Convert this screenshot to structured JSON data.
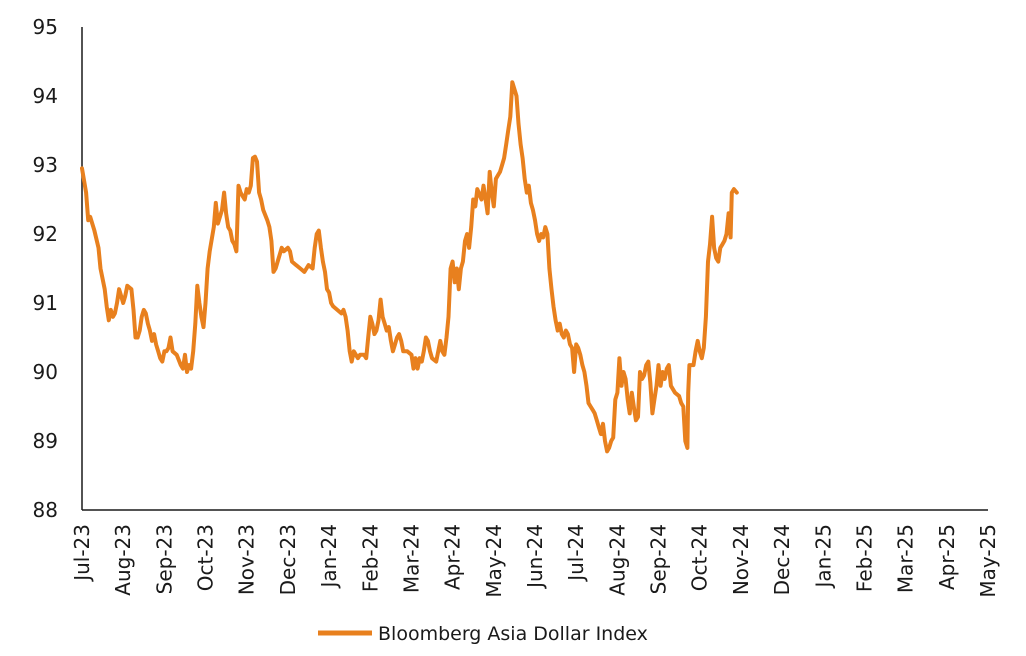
{
  "chart_data": {
    "type": "line",
    "title": "",
    "xlabel": "",
    "ylabel": "",
    "ylim": [
      88,
      95
    ],
    "yticks": [
      88,
      89,
      90,
      91,
      92,
      93,
      94,
      95
    ],
    "x_tick_labels": [
      "Jul-23",
      "Aug-23",
      "Sep-23",
      "Oct-23",
      "Nov-23",
      "Dec-23",
      "Jan-24",
      "Feb-24",
      "Mar-24",
      "Apr-24",
      "May-24",
      "Jun-24",
      "Jul-24",
      "Aug-24",
      "Sep-24",
      "Oct-24",
      "Nov-24",
      "Dec-24",
      "Jan-25",
      "Feb-25",
      "Mar-25",
      "Apr-25",
      "May-25"
    ],
    "grid": false,
    "legend": "bottom-center",
    "colors": {
      "series": "#E8801E",
      "axis": "#1a1a1a"
    },
    "series": [
      {
        "name": "Bloomberg Asia Dollar Index",
        "points": [
          [
            0.0,
            92.95
          ],
          [
            0.1,
            92.6
          ],
          [
            0.15,
            92.2
          ],
          [
            0.2,
            92.25
          ],
          [
            0.3,
            92.05
          ],
          [
            0.4,
            91.8
          ],
          [
            0.45,
            91.5
          ],
          [
            0.55,
            91.2
          ],
          [
            0.6,
            90.95
          ],
          [
            0.65,
            90.75
          ],
          [
            0.7,
            90.9
          ],
          [
            0.75,
            90.8
          ],
          [
            0.8,
            90.85
          ],
          [
            0.85,
            91.0
          ],
          [
            0.9,
            91.2
          ],
          [
            1.0,
            91.0
          ],
          [
            1.05,
            91.1
          ],
          [
            1.1,
            91.25
          ],
          [
            1.2,
            91.2
          ],
          [
            1.25,
            90.9
          ],
          [
            1.3,
            90.5
          ],
          [
            1.35,
            90.5
          ],
          [
            1.4,
            90.6
          ],
          [
            1.45,
            90.8
          ],
          [
            1.5,
            90.9
          ],
          [
            1.55,
            90.85
          ],
          [
            1.6,
            90.7
          ],
          [
            1.65,
            90.6
          ],
          [
            1.7,
            90.45
          ],
          [
            1.75,
            90.55
          ],
          [
            1.8,
            90.4
          ],
          [
            1.85,
            90.3
          ],
          [
            1.9,
            90.2
          ],
          [
            1.95,
            90.15
          ],
          [
            2.0,
            90.3
          ],
          [
            2.05,
            90.3
          ],
          [
            2.1,
            90.35
          ],
          [
            2.15,
            90.5
          ],
          [
            2.2,
            90.3
          ],
          [
            2.3,
            90.25
          ],
          [
            2.4,
            90.1
          ],
          [
            2.45,
            90.05
          ],
          [
            2.5,
            90.25
          ],
          [
            2.55,
            90.0
          ],
          [
            2.6,
            90.1
          ],
          [
            2.65,
            90.05
          ],
          [
            2.7,
            90.3
          ],
          [
            2.75,
            90.7
          ],
          [
            2.8,
            91.25
          ],
          [
            2.85,
            91.0
          ],
          [
            2.9,
            90.8
          ],
          [
            2.95,
            90.65
          ],
          [
            3.0,
            91.0
          ],
          [
            3.05,
            91.5
          ],
          [
            3.1,
            91.75
          ],
          [
            3.2,
            92.1
          ],
          [
            3.25,
            92.45
          ],
          [
            3.3,
            92.15
          ],
          [
            3.4,
            92.35
          ],
          [
            3.45,
            92.6
          ],
          [
            3.5,
            92.3
          ],
          [
            3.55,
            92.1
          ],
          [
            3.6,
            92.05
          ],
          [
            3.65,
            91.9
          ],
          [
            3.7,
            91.85
          ],
          [
            3.75,
            91.75
          ],
          [
            3.8,
            92.7
          ],
          [
            3.85,
            92.6
          ],
          [
            3.9,
            92.55
          ],
          [
            3.95,
            92.5
          ],
          [
            4.0,
            92.65
          ],
          [
            4.05,
            92.6
          ],
          [
            4.1,
            92.7
          ],
          [
            4.15,
            93.1
          ],
          [
            4.2,
            93.12
          ],
          [
            4.25,
            93.05
          ],
          [
            4.3,
            92.6
          ],
          [
            4.35,
            92.5
          ],
          [
            4.4,
            92.35
          ],
          [
            4.5,
            92.2
          ],
          [
            4.55,
            92.1
          ],
          [
            4.6,
            91.9
          ],
          [
            4.65,
            91.45
          ],
          [
            4.7,
            91.5
          ],
          [
            4.8,
            91.7
          ],
          [
            4.85,
            91.8
          ],
          [
            4.9,
            91.75
          ],
          [
            5.0,
            91.8
          ],
          [
            5.05,
            91.75
          ],
          [
            5.1,
            91.6
          ],
          [
            5.2,
            91.55
          ],
          [
            5.3,
            91.5
          ],
          [
            5.4,
            91.45
          ],
          [
            5.5,
            91.55
          ],
          [
            5.6,
            91.5
          ],
          [
            5.65,
            91.8
          ],
          [
            5.7,
            92.0
          ],
          [
            5.75,
            92.05
          ],
          [
            5.8,
            91.8
          ],
          [
            5.85,
            91.6
          ],
          [
            5.9,
            91.45
          ],
          [
            5.95,
            91.2
          ],
          [
            6.0,
            91.15
          ],
          [
            6.05,
            91.0
          ],
          [
            6.1,
            90.95
          ],
          [
            6.2,
            90.9
          ],
          [
            6.3,
            90.85
          ],
          [
            6.35,
            90.9
          ],
          [
            6.4,
            90.8
          ],
          [
            6.45,
            90.6
          ],
          [
            6.5,
            90.3
          ],
          [
            6.55,
            90.15
          ],
          [
            6.6,
            90.3
          ],
          [
            6.7,
            90.2
          ],
          [
            6.75,
            90.25
          ],
          [
            6.85,
            90.25
          ],
          [
            6.9,
            90.2
          ],
          [
            6.95,
            90.5
          ],
          [
            7.0,
            90.8
          ],
          [
            7.05,
            90.7
          ],
          [
            7.1,
            90.55
          ],
          [
            7.15,
            90.6
          ],
          [
            7.2,
            90.75
          ],
          [
            7.25,
            91.05
          ],
          [
            7.3,
            90.8
          ],
          [
            7.35,
            90.7
          ],
          [
            7.4,
            90.6
          ],
          [
            7.45,
            90.65
          ],
          [
            7.5,
            90.45
          ],
          [
            7.55,
            90.3
          ],
          [
            7.6,
            90.4
          ],
          [
            7.65,
            90.5
          ],
          [
            7.7,
            90.55
          ],
          [
            7.75,
            90.45
          ],
          [
            7.8,
            90.3
          ],
          [
            7.9,
            90.3
          ],
          [
            8.0,
            90.25
          ],
          [
            8.05,
            90.05
          ],
          [
            8.1,
            90.2
          ],
          [
            8.15,
            90.05
          ],
          [
            8.2,
            90.2
          ],
          [
            8.25,
            90.15
          ],
          [
            8.3,
            90.3
          ],
          [
            8.35,
            90.5
          ],
          [
            8.4,
            90.45
          ],
          [
            8.45,
            90.3
          ],
          [
            8.5,
            90.2
          ],
          [
            8.6,
            90.15
          ],
          [
            8.7,
            90.45
          ],
          [
            8.75,
            90.3
          ],
          [
            8.8,
            90.25
          ],
          [
            8.85,
            90.5
          ],
          [
            8.9,
            90.8
          ],
          [
            8.95,
            91.5
          ],
          [
            9.0,
            91.6
          ],
          [
            9.05,
            91.3
          ],
          [
            9.1,
            91.5
          ],
          [
            9.15,
            91.2
          ],
          [
            9.2,
            91.5
          ],
          [
            9.25,
            91.6
          ],
          [
            9.3,
            91.9
          ],
          [
            9.35,
            92.0
          ],
          [
            9.4,
            91.8
          ],
          [
            9.45,
            92.1
          ],
          [
            9.5,
            92.5
          ],
          [
            9.55,
            92.4
          ],
          [
            9.6,
            92.65
          ],
          [
            9.7,
            92.5
          ],
          [
            9.75,
            92.7
          ],
          [
            9.8,
            92.5
          ],
          [
            9.85,
            92.3
          ],
          [
            9.9,
            92.9
          ],
          [
            9.95,
            92.6
          ],
          [
            10.0,
            92.4
          ],
          [
            10.05,
            92.8
          ],
          [
            10.1,
            92.85
          ],
          [
            10.15,
            92.9
          ],
          [
            10.2,
            93.0
          ],
          [
            10.25,
            93.1
          ],
          [
            10.3,
            93.3
          ],
          [
            10.35,
            93.5
          ],
          [
            10.4,
            93.7
          ],
          [
            10.45,
            94.2
          ],
          [
            10.5,
            94.1
          ],
          [
            10.55,
            94.0
          ],
          [
            10.6,
            93.6
          ],
          [
            10.65,
            93.3
          ],
          [
            10.7,
            93.1
          ],
          [
            10.75,
            92.8
          ],
          [
            10.8,
            92.6
          ],
          [
            10.85,
            92.7
          ],
          [
            10.9,
            92.45
          ],
          [
            10.95,
            92.35
          ],
          [
            11.0,
            92.2
          ],
          [
            11.05,
            92.0
          ],
          [
            11.1,
            91.9
          ],
          [
            11.15,
            92.0
          ],
          [
            11.2,
            91.95
          ],
          [
            11.25,
            92.1
          ],
          [
            11.3,
            92.0
          ],
          [
            11.35,
            91.5
          ],
          [
            11.4,
            91.2
          ],
          [
            11.45,
            90.95
          ],
          [
            11.5,
            90.75
          ],
          [
            11.55,
            90.6
          ],
          [
            11.6,
            90.7
          ],
          [
            11.65,
            90.55
          ],
          [
            11.7,
            90.5
          ],
          [
            11.75,
            90.6
          ],
          [
            11.8,
            90.55
          ],
          [
            11.85,
            90.4
          ],
          [
            11.9,
            90.35
          ],
          [
            11.95,
            90.0
          ],
          [
            12.0,
            90.4
          ],
          [
            12.05,
            90.35
          ],
          [
            12.1,
            90.25
          ],
          [
            12.15,
            90.1
          ],
          [
            12.2,
            90.0
          ],
          [
            12.25,
            89.8
          ],
          [
            12.3,
            89.55
          ],
          [
            12.35,
            89.5
          ],
          [
            12.4,
            89.45
          ],
          [
            12.45,
            89.4
          ],
          [
            12.5,
            89.3
          ],
          [
            12.55,
            89.2
          ],
          [
            12.6,
            89.1
          ],
          [
            12.65,
            89.25
          ],
          [
            12.7,
            89.0
          ],
          [
            12.75,
            88.85
          ],
          [
            12.8,
            88.9
          ],
          [
            12.85,
            89.0
          ],
          [
            12.9,
            89.05
          ],
          [
            12.95,
            89.6
          ],
          [
            13.0,
            89.7
          ],
          [
            13.05,
            90.2
          ],
          [
            13.1,
            89.8
          ],
          [
            13.15,
            90.0
          ],
          [
            13.2,
            89.9
          ],
          [
            13.25,
            89.6
          ],
          [
            13.3,
            89.4
          ],
          [
            13.35,
            89.7
          ],
          [
            13.4,
            89.5
          ],
          [
            13.45,
            89.3
          ],
          [
            13.5,
            89.35
          ],
          [
            13.55,
            90.0
          ],
          [
            13.6,
            89.9
          ],
          [
            13.65,
            89.95
          ],
          [
            13.7,
            90.1
          ],
          [
            13.75,
            90.15
          ],
          [
            13.8,
            89.85
          ],
          [
            13.85,
            89.4
          ],
          [
            13.9,
            89.6
          ],
          [
            13.95,
            89.8
          ],
          [
            14.0,
            90.1
          ],
          [
            14.05,
            89.8
          ],
          [
            14.1,
            90.0
          ],
          [
            14.15,
            89.9
          ],
          [
            14.2,
            90.05
          ],
          [
            14.25,
            90.1
          ],
          [
            14.3,
            89.8
          ],
          [
            14.4,
            89.7
          ],
          [
            14.5,
            89.65
          ],
          [
            14.55,
            89.55
          ],
          [
            14.6,
            89.5
          ],
          [
            14.65,
            89.0
          ],
          [
            14.7,
            88.9
          ],
          [
            14.72,
            89.7
          ],
          [
            14.75,
            90.1
          ],
          [
            14.85,
            90.1
          ],
          [
            14.9,
            90.3
          ],
          [
            14.95,
            90.45
          ],
          [
            15.0,
            90.3
          ],
          [
            15.05,
            90.2
          ],
          [
            15.1,
            90.35
          ],
          [
            15.15,
            90.8
          ],
          [
            15.2,
            91.6
          ],
          [
            15.25,
            91.85
          ],
          [
            15.3,
            92.25
          ],
          [
            15.35,
            91.8
          ],
          [
            15.4,
            91.65
          ],
          [
            15.45,
            91.6
          ],
          [
            15.5,
            91.8
          ],
          [
            15.55,
            91.85
          ],
          [
            15.6,
            91.9
          ],
          [
            15.65,
            92.0
          ],
          [
            15.7,
            92.3
          ],
          [
            15.75,
            91.95
          ],
          [
            15.78,
            92.6
          ],
          [
            15.83,
            92.65
          ],
          [
            15.9,
            92.6
          ]
        ]
      }
    ]
  }
}
